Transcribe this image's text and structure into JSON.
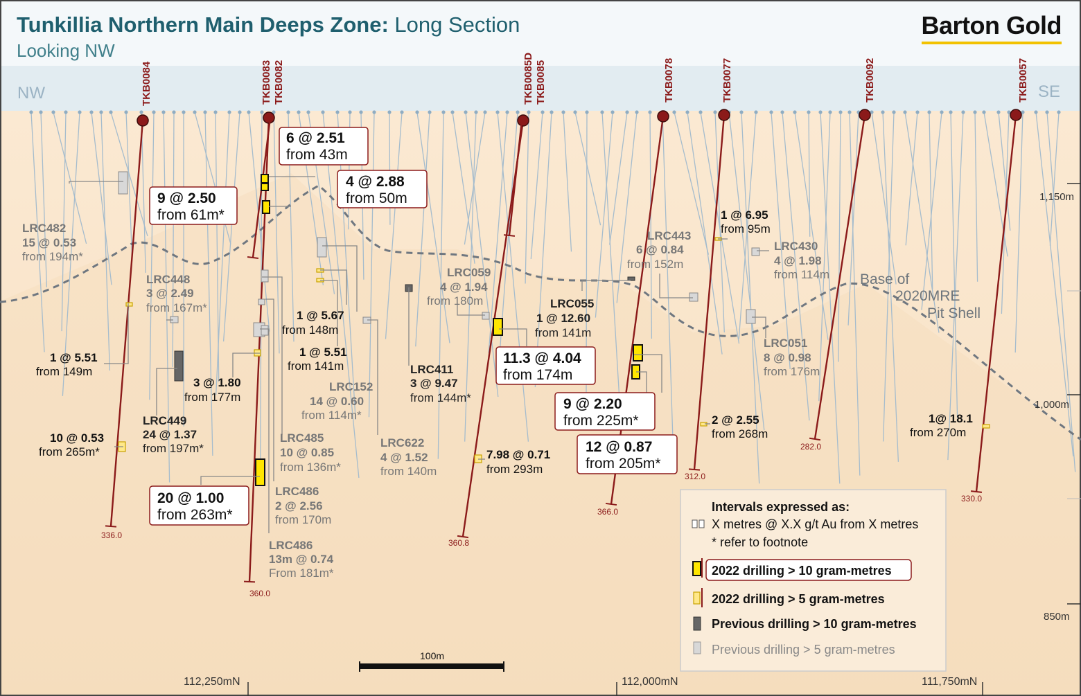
{
  "title": {
    "bold": "Tunkillia Northern Main Deeps Zone:",
    "rest": " Long Section",
    "subtitle": "Looking NW"
  },
  "logo": "Barton Gold",
  "directions": {
    "left": "NW",
    "right": "SE"
  },
  "elevations": [
    "1,150m",
    "1,000m",
    "850m"
  ],
  "eastings": [
    "112,250mN",
    "112,000mN",
    "111,750mN"
  ],
  "scale_bar": "100m",
  "pit_shell": [
    "Base of",
    "2020MRE",
    "Pit Shell"
  ],
  "holes": [
    {
      "name": "TKB0084",
      "depth": "336.0"
    },
    {
      "name": "TKB0083",
      "depth": "360.0"
    },
    {
      "name": "TKB0082",
      "depth": ""
    },
    {
      "name": "TKB0085D",
      "depth": "360.8"
    },
    {
      "name": "TKB0085",
      "depth": ""
    },
    {
      "name": "TKB0078",
      "depth": "366.0"
    },
    {
      "name": "TKB0077",
      "depth": "312.0"
    },
    {
      "name": "TKB0092",
      "depth": "282.0"
    },
    {
      "name": "TKB0057",
      "depth": "330.0"
    }
  ],
  "boxed_intercepts": [
    {
      "l1": "6 @ 2.51",
      "l2": "from 43m"
    },
    {
      "l1": "4 @ 2.88",
      "l2": "from 50m"
    },
    {
      "l1": "9 @ 2.50",
      "l2": "from 61m*"
    },
    {
      "l1": "11.3 @ 4.04",
      "l2": "from 174m"
    },
    {
      "l1": "9 @ 2.20",
      "l2": "from 225m*"
    },
    {
      "l1": "12 @ 0.87",
      "l2": "from 205m*"
    },
    {
      "l1": "20 @ 1.00",
      "l2": "from 263m*"
    }
  ],
  "labels_2022": [
    {
      "l1": "1 @ 5.51",
      "l2": "from 149m"
    },
    {
      "l1": "10 @ 0.53",
      "l2": "from 265m*"
    },
    {
      "l1": "3 @ 1.80",
      "l2": "from 177m"
    },
    {
      "l1": "1 @ 5.67",
      "l2": "from 148m"
    },
    {
      "l1": "1 @ 5.51",
      "l2": "from 141m"
    },
    {
      "l1": "7.98 @ 0.71",
      "l2": "from 293m"
    },
    {
      "l1": "1 @ 6.95",
      "l2": "from 95m"
    },
    {
      "l1": "2 @ 2.55",
      "l2": "from 268m"
    },
    {
      "l1": "1@ 18.1",
      "l2": "from 270m"
    }
  ],
  "labels_prev_major": [
    {
      "name": "LRC449",
      "l1": "24 @ 1.37",
      "l2": "from 197m*"
    },
    {
      "name": "LRC411",
      "l1": "3 @ 9.47",
      "l2": "from 144m*"
    },
    {
      "name": "LRC055",
      "l1": "1 @ 12.60",
      "l2": "from 141m"
    }
  ],
  "labels_prev_minor": [
    {
      "name": "LRC482",
      "l1": "15 @ 0.53",
      "l2": "from 194m*"
    },
    {
      "name": "LRC448",
      "l1": "3 @ 2.49",
      "l2": "from 167m*"
    },
    {
      "name": "LRC152",
      "l1": "14 @ 0.60",
      "l2": "from 114m*"
    },
    {
      "name": "LRC485",
      "l1": "10 @ 0.85",
      "l2": "from 136m*"
    },
    {
      "name": "LRC486",
      "l1": "2 @ 2.56",
      "l2": "from 170m"
    },
    {
      "name": "LRC486",
      "l1": "13m @ 0.74",
      "l2": "From 181m*"
    },
    {
      "name": "LRC622",
      "l1": "4 @ 1.52",
      "l2": "from 140m"
    },
    {
      "name": "LRC059",
      "l1": "4 @ 1.94",
      "l2": "from 180m"
    },
    {
      "name": "LRC443",
      "l1": "6 @ 0.84",
      "l2": "from 152m"
    },
    {
      "name": "LRC430",
      "l1": "4 @ 1.98",
      "l2": "from 114m"
    },
    {
      "name": "LRC051",
      "l1": "8 @ 0.98",
      "l2": "from 176m"
    }
  ],
  "legend": {
    "heading": "Intervals expressed as:",
    "format": "X metres @ X.X g/t Au from X metres",
    "footnote": "* refer to footnote",
    "items": [
      "2022 drilling > 10 gram-metres",
      "2022 drilling > 5 gram-metres",
      "Previous drilling > 10 gram-metres",
      "Previous drilling > 5 gram-metres"
    ]
  },
  "colors": {
    "ground": "#f7e3c7",
    "sky": "#dde8ee",
    "hole": "#8b1a1a",
    "trace": "#9fb8cc",
    "gold": "#ffe600",
    "title": "#1f5f6e"
  }
}
